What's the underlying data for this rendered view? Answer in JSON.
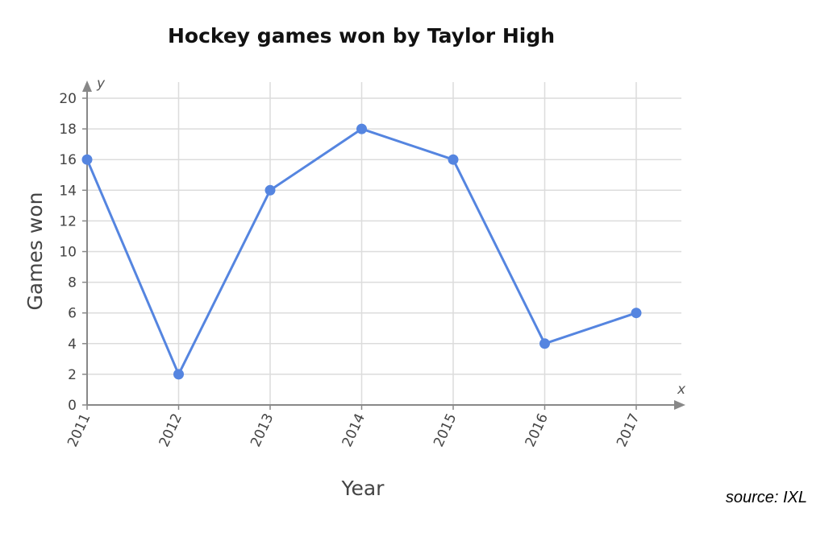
{
  "source": "source: IXL",
  "chart_data": {
    "type": "line",
    "title": "Hockey games won by Taylor High",
    "xlabel": "Year",
    "ylabel": "Games won",
    "x_axis_letter": "x",
    "y_axis_letter": "y",
    "x": [
      "2011",
      "2012",
      "2013",
      "2014",
      "2015",
      "2016",
      "2017"
    ],
    "y": [
      16,
      2,
      14,
      18,
      16,
      4,
      6
    ],
    "ylim": [
      0,
      20
    ],
    "yticks": [
      0,
      2,
      4,
      6,
      8,
      10,
      12,
      14,
      16,
      18,
      20
    ],
    "grid": true,
    "line_color": "#5585e0",
    "grid_color": "#dcdcdc",
    "axis_color": "#888888"
  }
}
